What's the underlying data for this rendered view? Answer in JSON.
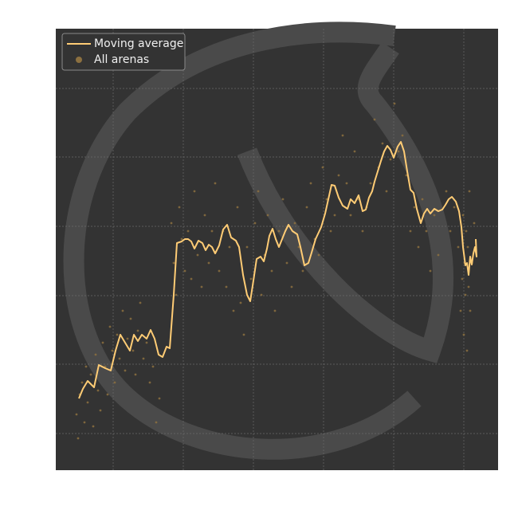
{
  "chart_data": {
    "type": "line-scatter",
    "xlim": [
      0,
      555
    ],
    "ylim": [
      0,
      554
    ],
    "xticks": [
      72,
      160,
      248,
      336,
      424,
      512
    ],
    "yticks": [
      46,
      133,
      219,
      306,
      393,
      479
    ],
    "grid": true,
    "legend": "upper left",
    "series": [
      {
        "name": "Moving average",
        "type": "line",
        "color": "#ffcc75",
        "x": [
          29,
          34,
          40,
          48,
          54,
          62,
          69,
          75,
          81,
          87,
          93,
          98,
          103,
          108,
          114,
          119,
          124,
          129,
          134,
          139,
          143,
          148,
          152,
          158,
          162,
          166,
          170,
          174,
          179,
          184,
          188,
          192,
          196,
          200,
          205,
          210,
          215,
          220,
          226,
          230,
          235,
          240,
          244,
          248,
          252,
          257,
          261,
          265,
          268,
          272,
          276,
          280,
          284,
          288,
          292,
          297,
          303,
          307,
          312,
          317,
          321,
          326,
          333,
          338,
          342,
          346,
          350,
          355,
          360,
          366,
          370,
          375,
          380,
          385,
          389,
          393,
          397,
          400,
          404,
          408,
          412,
          416,
          420,
          424,
          429,
          433,
          437,
          441,
          445,
          449,
          453,
          458,
          462,
          466,
          470,
          475,
          480,
          485,
          489,
          493,
          497,
          502,
          506,
          509,
          511,
          514,
          516,
          518,
          520,
          522,
          524,
          526,
          528,
          527
        ],
        "values": [
          90,
          102,
          112,
          104,
          132,
          128,
          125,
          150,
          170,
          160,
          150,
          170,
          162,
          170,
          165,
          176,
          165,
          145,
          142,
          155,
          153,
          220,
          285,
          287,
          290,
          290,
          287,
          278,
          288,
          285,
          276,
          283,
          280,
          272,
          282,
          302,
          308,
          292,
          288,
          280,
          245,
          220,
          212,
          238,
          265,
          268,
          262,
          278,
          294,
          303,
          290,
          280,
          290,
          300,
          308,
          300,
          296,
          280,
          257,
          260,
          273,
          290,
          305,
          322,
          340,
          358,
          357,
          342,
          332,
          328,
          340,
          335,
          345,
          325,
          327,
          342,
          350,
          362,
          375,
          388,
          400,
          407,
          402,
          392,
          406,
          412,
          400,
          375,
          352,
          348,
          328,
          310,
          322,
          328,
          322,
          328,
          325,
          327,
          333,
          340,
          343,
          337,
          325,
          305,
          280,
          257,
          260,
          245,
          268,
          258,
          272,
          280,
          268,
          290
        ]
      },
      {
        "name": "All arenas",
        "type": "scatter",
        "color": "#8c7040",
        "x": [
          26,
          28,
          30,
          33,
          36,
          38,
          40,
          44,
          47,
          50,
          53,
          56,
          59,
          62,
          65,
          68,
          71,
          74,
          77,
          80,
          84,
          87,
          90,
          94,
          97,
          100,
          103,
          106,
          110,
          114,
          118,
          122,
          126,
          130,
          145,
          148,
          151,
          155,
          158,
          162,
          166,
          170,
          174,
          178,
          183,
          187,
          192,
          196,
          200,
          205,
          210,
          214,
          218,
          223,
          228,
          232,
          236,
          240,
          245,
          250,
          254,
          258,
          262,
          266,
          271,
          275,
          280,
          285,
          290,
          296,
          300,
          305,
          310,
          315,
          320,
          325,
          330,
          335,
          340,
          345,
          350,
          355,
          360,
          365,
          370,
          375,
          380,
          385,
          390,
          395,
          400,
          405,
          410,
          415,
          420,
          425,
          430,
          435,
          440,
          445,
          450,
          455,
          460,
          465,
          470,
          475,
          480,
          490,
          495,
          500,
          505,
          508,
          510,
          511,
          512,
          513,
          514,
          515,
          516,
          517,
          518,
          519,
          520,
          522,
          525
        ],
        "values": [
          70,
          40,
          95,
          110,
          60,
          130,
          85,
          120,
          55,
          145,
          100,
          75,
          160,
          130,
          95,
          180,
          150,
          110,
          170,
          140,
          200,
          125,
          165,
          190,
          150,
          120,
          175,
          210,
          140,
          160,
          110,
          130,
          60,
          90,
          310,
          260,
          220,
          330,
          290,
          250,
          300,
          240,
          350,
          270,
          230,
          320,
          260,
          300,
          360,
          250,
          300,
          230,
          280,
          200,
          330,
          210,
          170,
          280,
          240,
          310,
          350,
          220,
          270,
          320,
          250,
          200,
          300,
          340,
          260,
          230,
          310,
          280,
          250,
          330,
          360,
          290,
          270,
          380,
          340,
          300,
          320,
          370,
          420,
          360,
          320,
          400,
          340,
          300,
          330,
          360,
          440,
          380,
          410,
          350,
          390,
          460,
          400,
          420,
          370,
          300,
          330,
          280,
          340,
          300,
          250,
          320,
          270,
          350,
          300,
          330,
          280,
          200,
          240,
          320,
          170,
          260,
          220,
          300,
          150,
          280,
          230,
          350,
          200,
          260,
          310
        ]
      }
    ]
  }
}
